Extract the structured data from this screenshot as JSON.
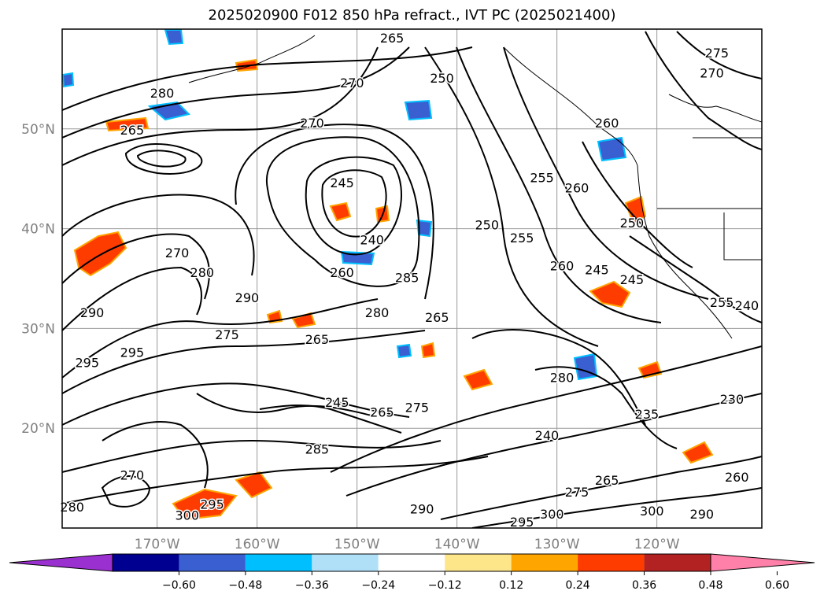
{
  "title": "2025020900 F012 850 hPa refract., IVT PC (2025021400)",
  "lat_labels": [
    {
      "label": "50°N",
      "value": 50
    },
    {
      "label": "40°N",
      "value": 40
    },
    {
      "label": "30°N",
      "value": 30
    },
    {
      "label": "20°N",
      "value": 20
    }
  ],
  "lon_labels": [
    {
      "label": "170°W",
      "value": -170
    },
    {
      "label": "160°W",
      "value": -160
    },
    {
      "label": "150°W",
      "value": -150
    },
    {
      "label": "140°W",
      "value": -140
    },
    {
      "label": "130°W",
      "value": -130
    },
    {
      "label": "120°W",
      "value": -120
    }
  ],
  "map_extent": {
    "lon_min": -179.5,
    "lon_max": -109.5,
    "lat_min": 10,
    "lat_max": 60
  },
  "colorbar": {
    "ticks": [
      "−0.60",
      "−0.48",
      "−0.36",
      "−0.24",
      "−0.12",
      "0.12",
      "0.24",
      "0.36",
      "0.48",
      "0.60"
    ],
    "colors": [
      "#9b30d0",
      "#000090",
      "#3a5fd0",
      "#00bfff",
      "#b0e0f8",
      "#ffffff",
      "#fde68a",
      "#ffa500",
      "#ff3c00",
      "#b22222",
      "#ff80a8"
    ]
  },
  "contour_labels": [
    {
      "text": "265",
      "lon": -146.5,
      "lat": 59
    },
    {
      "text": "275",
      "lon": -114,
      "lat": 57.5
    },
    {
      "text": "270",
      "lon": -114.5,
      "lat": 55.5
    },
    {
      "text": "270",
      "lon": -150.5,
      "lat": 54.5
    },
    {
      "text": "250",
      "lon": -141.5,
      "lat": 55
    },
    {
      "text": "280",
      "lon": -169.5,
      "lat": 53.5
    },
    {
      "text": "270",
      "lon": -154.5,
      "lat": 50.5
    },
    {
      "text": "265",
      "lon": -172.5,
      "lat": 49.8
    },
    {
      "text": "260",
      "lon": -125,
      "lat": 50.5
    },
    {
      "text": "245",
      "lon": -151.5,
      "lat": 44.5
    },
    {
      "text": "255",
      "lon": -131.5,
      "lat": 45
    },
    {
      "text": "260",
      "lon": -128,
      "lat": 44
    },
    {
      "text": "240",
      "lon": -148.5,
      "lat": 38.8
    },
    {
      "text": "250",
      "lon": -137,
      "lat": 40.3
    },
    {
      "text": "255",
      "lon": -133.5,
      "lat": 39
    },
    {
      "text": "250",
      "lon": -122.5,
      "lat": 40.5
    },
    {
      "text": "260",
      "lon": -151.5,
      "lat": 35.5
    },
    {
      "text": "260",
      "lon": -129.5,
      "lat": 36.2
    },
    {
      "text": "245",
      "lon": -126,
      "lat": 35.8
    },
    {
      "text": "245",
      "lon": -122.5,
      "lat": 34.8
    },
    {
      "text": "270",
      "lon": -168,
      "lat": 37.5
    },
    {
      "text": "280",
      "lon": -165.5,
      "lat": 35.5
    },
    {
      "text": "285",
      "lon": -145,
      "lat": 35
    },
    {
      "text": "290",
      "lon": -161,
      "lat": 33
    },
    {
      "text": "290",
      "lon": -176.5,
      "lat": 31.5
    },
    {
      "text": "280",
      "lon": -148,
      "lat": 31.5
    },
    {
      "text": "265",
      "lon": -142,
      "lat": 31
    },
    {
      "text": "255",
      "lon": -113.5,
      "lat": 32.5
    },
    {
      "text": "240",
      "lon": -111,
      "lat": 32.2
    },
    {
      "text": "265",
      "lon": -154,
      "lat": 28.8
    },
    {
      "text": "275",
      "lon": -163,
      "lat": 29.3
    },
    {
      "text": "295",
      "lon": -172.5,
      "lat": 27.5
    },
    {
      "text": "295",
      "lon": -177,
      "lat": 26.5
    },
    {
      "text": "280",
      "lon": -129.5,
      "lat": 25
    },
    {
      "text": "245",
      "lon": -152,
      "lat": 22.5
    },
    {
      "text": "265",
      "lon": -147.5,
      "lat": 21.5
    },
    {
      "text": "275",
      "lon": -144,
      "lat": 22
    },
    {
      "text": "235",
      "lon": -121,
      "lat": 21.3
    },
    {
      "text": "230",
      "lon": -112.5,
      "lat": 22.8
    },
    {
      "text": "240",
      "lon": -131,
      "lat": 19.2
    },
    {
      "text": "285",
      "lon": -154,
      "lat": 17.8
    },
    {
      "text": "260",
      "lon": -112,
      "lat": 15
    },
    {
      "text": "265",
      "lon": -125,
      "lat": 14.7
    },
    {
      "text": "275",
      "lon": -128,
      "lat": 13.5
    },
    {
      "text": "270",
      "lon": -172.5,
      "lat": 15.2
    },
    {
      "text": "295",
      "lon": -164.5,
      "lat": 12.3
    },
    {
      "text": "300",
      "lon": -167,
      "lat": 11.2
    },
    {
      "text": "290",
      "lon": -143.5,
      "lat": 11.8
    },
    {
      "text": "300",
      "lon": -130.5,
      "lat": 11.3
    },
    {
      "text": "300",
      "lon": -120.5,
      "lat": 11.6
    },
    {
      "text": "290",
      "lon": -115.5,
      "lat": 11.3
    },
    {
      "text": "295",
      "lon": -133.5,
      "lat": 10.5
    },
    {
      "text": "280",
      "lon": -178.5,
      "lat": 12
    }
  ]
}
